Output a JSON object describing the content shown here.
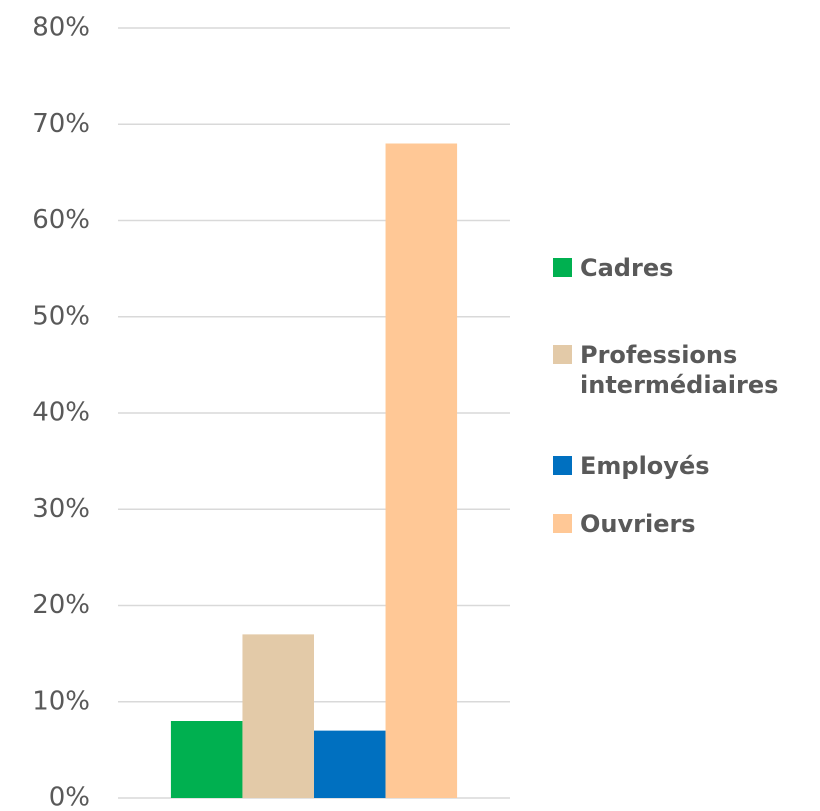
{
  "chart_data": {
    "type": "bar",
    "categories": [
      null
    ],
    "series": [
      {
        "name": "Cadres",
        "color": "#00b050",
        "values": [
          8
        ]
      },
      {
        "name": "Professions intermédiaires",
        "color": "#e3caa8",
        "values": [
          17
        ]
      },
      {
        "name": "Employés",
        "color": "#0070c0",
        "values": [
          7
        ]
      },
      {
        "name": "Ouvriers",
        "color": "#ffc896",
        "values": [
          68
        ]
      }
    ],
    "ylim": [
      0,
      80
    ],
    "yticks": [
      {
        "value": 0,
        "label": "0%"
      },
      {
        "value": 10,
        "label": "10%"
      },
      {
        "value": 20,
        "label": "20%"
      },
      {
        "value": 30,
        "label": "30%"
      },
      {
        "value": 40,
        "label": "40%"
      },
      {
        "value": 50,
        "label": "50%"
      },
      {
        "value": 60,
        "label": "60%"
      },
      {
        "value": 70,
        "label": "70%"
      },
      {
        "value": 80,
        "label": "80%"
      }
    ],
    "grid": true,
    "legend": "right"
  }
}
